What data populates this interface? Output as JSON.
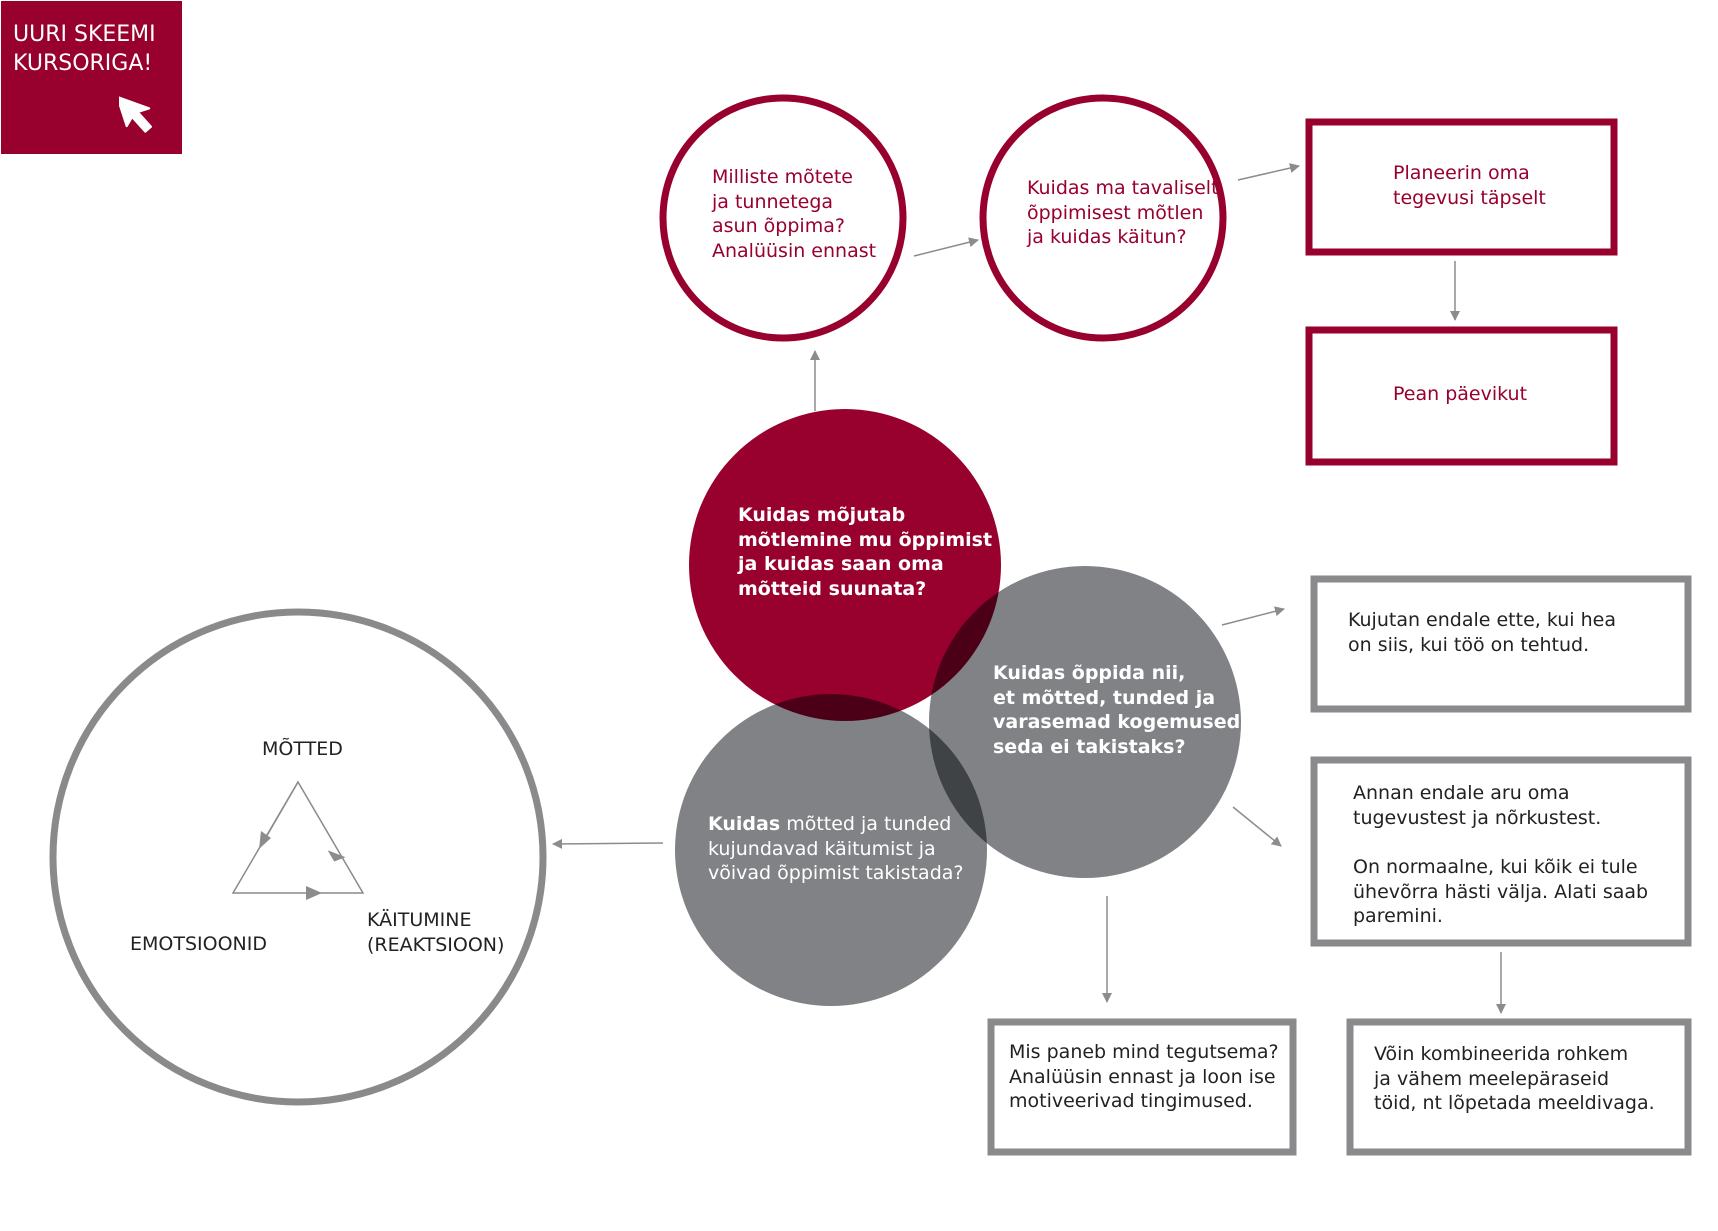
{
  "explore_badge": {
    "label": "UURI SKEEMI\nKURSORIGA!",
    "icon": "cursor-arrow-icon"
  },
  "colors": {
    "maroon": "#98002e",
    "gray": "#808285",
    "arrow": "#8c8c8c",
    "outline_gray": "#8a8a8c"
  },
  "top_circles": {
    "analyze": "Milliste mõtete\nja tunnetega\nasun õppima?\nAnalüüsin ennast",
    "habits": "Kuidas ma tavaliselt\nõppimisest mõtlen\nja kuidas käitun?"
  },
  "top_boxes": {
    "plan": "Planeerin oma\ntegevusi täpselt",
    "diary": "Pean päevikut"
  },
  "center_circles": {
    "thinking": "Kuidas mõjutab\nmõtlemine mu õppimist\nja kuidas saan oma\nmõtteid suunata?",
    "obstacles": "Kuidas õppida nii,\net mõtted, tunded ja\nvarasemad kogemused\nseda ei takistaks?",
    "behavior_bold": "Kuidas",
    "behavior_rest": " mõtted ja tunded\nkujundavad käitumist ja\nvõivad õppimist takistada?"
  },
  "right_boxes": {
    "imagine": "Kujutan endale ette, kui hea\non siis, kui töö on tehtud.",
    "strengths": "Annan endale aru oma\ntugevustest ja nõrkustest.\n\nOn normaalne, kui kõik ei tule\nühevõrra hästi välja. Alati saab\nparemini.",
    "motivation": "Mis paneb mind tegutsema?\nAnalüüsin ennast ja loon ise\nmotiveerivad tingimused.",
    "combine": "Võin kombineerida rohkem\nja vähem meelepäraseid\ntöid, nt lõpetada meeldivaga."
  },
  "cycle": {
    "thoughts": "MÕTTED",
    "emotions": "EMOTSIOONID",
    "behavior": "KÄITUMINE\n(REAKTSIOON)"
  }
}
